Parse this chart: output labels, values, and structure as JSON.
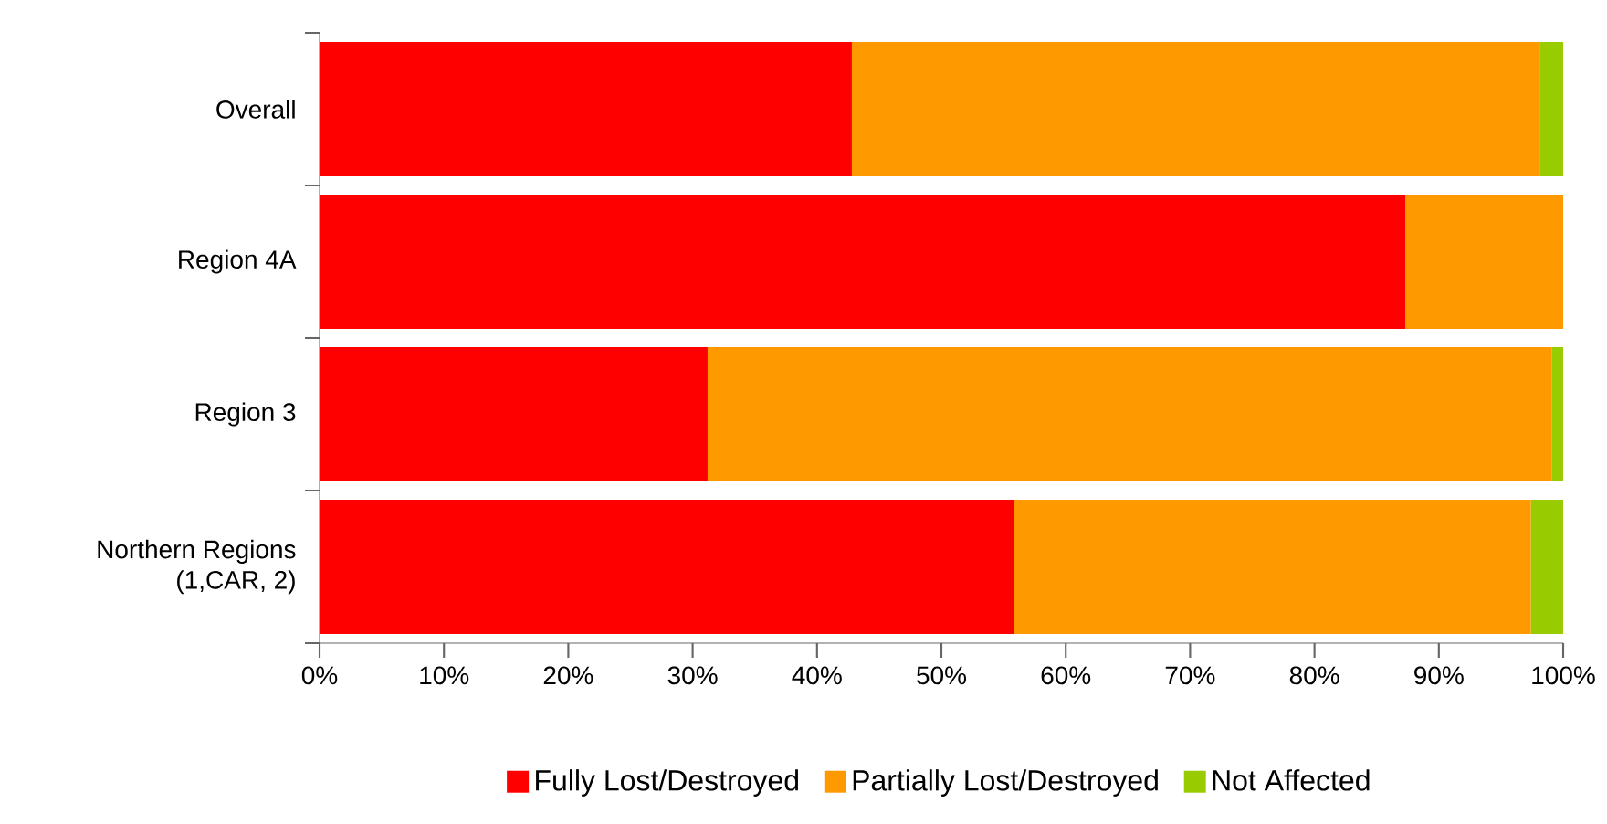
{
  "chart_data": {
    "type": "bar",
    "orientation": "horizontal",
    "stacked": true,
    "categories": [
      "Overall",
      "Region 4A",
      "Region 3",
      "Northern Regions (1,CAR, 2)"
    ],
    "series": [
      {
        "name": "Fully Lost/Destroyed",
        "color": "#ff0000",
        "values": [
          42.8,
          87.3,
          31.2,
          55.8
        ]
      },
      {
        "name": "Partially Lost/Destroyed",
        "color": "#ff9900",
        "values": [
          55.3,
          12.7,
          67.9,
          41.6
        ]
      },
      {
        "name": "Not Affected",
        "color": "#99cc00",
        "values": [
          1.9,
          0,
          0.9,
          2.6
        ]
      }
    ],
    "xlim": [
      0,
      100
    ],
    "xticks": [
      {
        "value": 0,
        "label": "0%"
      },
      {
        "value": 10,
        "label": "10%"
      },
      {
        "value": 20,
        "label": "20%"
      },
      {
        "value": 30,
        "label": "30%"
      },
      {
        "value": 40,
        "label": "40%"
      },
      {
        "value": 50,
        "label": "50%"
      },
      {
        "value": 60,
        "label": "60%"
      },
      {
        "value": 70,
        "label": "70%"
      },
      {
        "value": 80,
        "label": "80%"
      },
      {
        "value": 90,
        "label": "90%"
      },
      {
        "value": 100,
        "label": "100%"
      }
    ],
    "legend": "bottom"
  }
}
